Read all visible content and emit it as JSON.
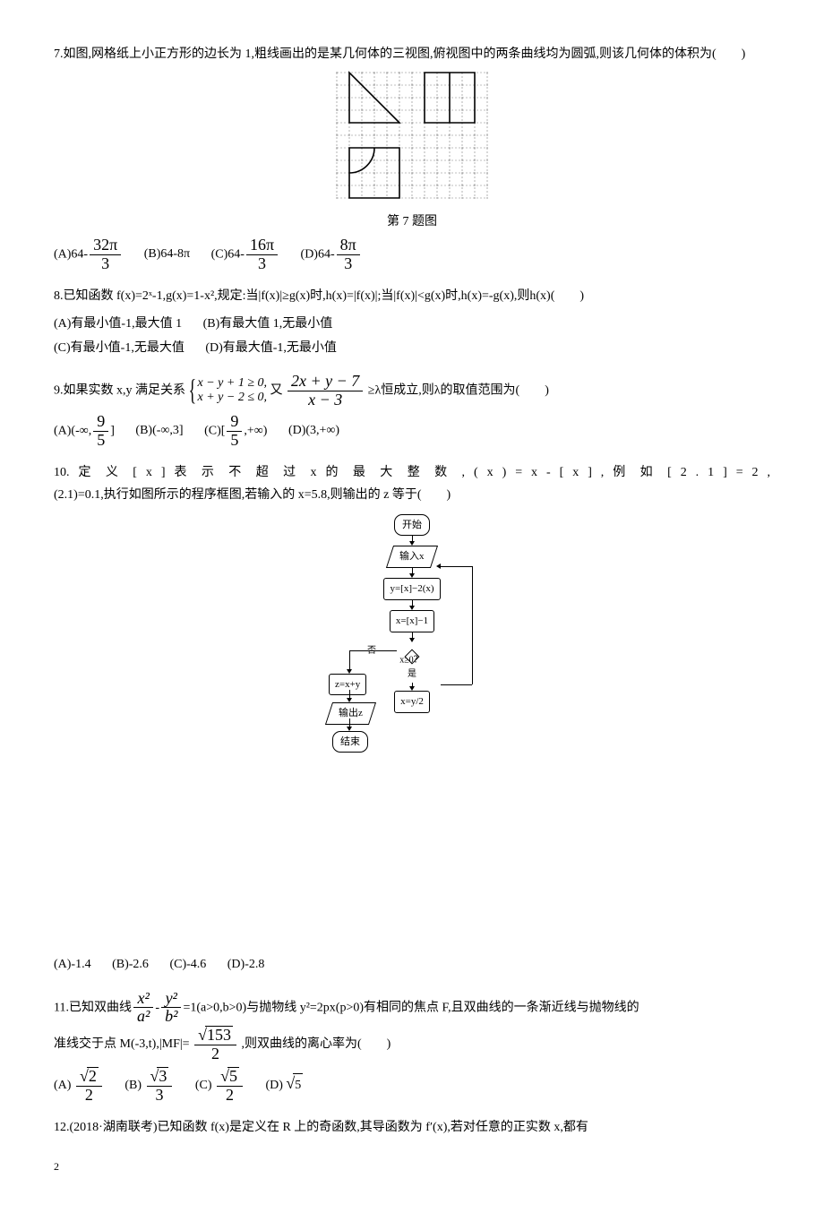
{
  "page": {
    "number": "2"
  },
  "q7": {
    "text": "7.如图,网格纸上小正方形的边长为 1,粗线画出的是某几何体的三视图,俯视图中的两条曲线均为圆弧,则该几何体的体积为(　　)",
    "fig_label": "第 7 题图",
    "grid": {
      "cols": 12,
      "rows": 10,
      "cell": 14,
      "color_dash": "#808080",
      "color_heavy": "#000000",
      "bg": "#ffffff"
    },
    "options": {
      "A_pre": "(A)64-",
      "A_num": "32π",
      "A_den": "3",
      "B": "(B)64-8π",
      "C_pre": "(C)64-",
      "C_num": "16π",
      "C_den": "3",
      "D_pre": "(D)64-",
      "D_num": "8π",
      "D_den": "3"
    }
  },
  "q8": {
    "text": "8.已知函数 f(x)=2ˣ-1,g(x)=1-x²,规定:当|f(x)|≥g(x)时,h(x)=|f(x)|;当|f(x)|<g(x)时,h(x)=-g(x),则h(x)(　　)",
    "opts": {
      "A": "(A)有最小值-1,最大值 1",
      "B": "(B)有最大值 1,无最小值",
      "C": "(C)有最小值-1,无最大值",
      "D": "(D)有最大值-1,无最小值"
    }
  },
  "q9": {
    "pre": "9.如果实数 x,y 满足关系",
    "line1": "x − y + 1 ≥ 0,",
    "line2": "x + y − 2 ≤ 0,",
    "mid": "又",
    "frac_num": "2x + y − 7",
    "frac_den": "x − 3",
    "post": "≥λ恒成立,则λ的取值范围为(　　)",
    "opts": {
      "A_pre": "(A)(-∞,",
      "A_num": "9",
      "A_den": "5",
      "A_post": "]",
      "B": "(B)(-∞,3]",
      "C_pre": "(C)[",
      "C_num": "9",
      "C_den": "5",
      "C_post": ",+∞)",
      "D": "(D)(3,+∞)"
    }
  },
  "q10": {
    "text1": "10. 定 义 [ x ] 表 示 不 超 过 x 的 最 大 整 数 , ( x ) = x - [ x ] , 例 如 [ 2 . 1 ] = 2 ,",
    "text2": "(2.1)=0.1,执行如图所示的程序框图,若输入的 x=5.8,则输出的 z 等于(　　)",
    "flow": {
      "start": "开始",
      "input": "输入x",
      "assign1": "y=[x]−2(x)",
      "assign2": "x=[x]−1",
      "cond": "x≥0？",
      "yes": "是",
      "no": "否",
      "right": "x=y/2",
      "left": "z=x+y",
      "output": "输出z",
      "end": "结束",
      "line_color": "#000000"
    },
    "opts": {
      "A": "(A)-1.4",
      "B": "(B)-2.6",
      "C": "(C)-4.6",
      "D": "(D)-2.8"
    }
  },
  "q11": {
    "pre": "11.已知双曲线",
    "t1_num": "x²",
    "t1_den": "a²",
    "minus": "-",
    "t2_num": "y²",
    "t2_den": "b²",
    "mid1": "=1(a>0,b>0)与抛物线 y²=2px(p>0)有相同的焦点 F,且双曲线的一条渐近线与抛物线的",
    "line2a": "准线交于点 M(-3,t),|MF|=",
    "mf_num_inner": "153",
    "mf_den": "2",
    "line2b": ",则双曲线的离心率为(　　)",
    "opts": {
      "A_pre": "(A)",
      "A_num_inner": "2",
      "A_den": "2",
      "B_pre": "(B)",
      "B_num_inner": "3",
      "B_den": "3",
      "C_pre": "(C)",
      "C_num_inner": "5",
      "C_den": "2",
      "D_pre": "(D)",
      "D_inner": "5"
    }
  },
  "q12": {
    "text": "12.(2018·湖南联考)已知函数 f(x)是定义在 R 上的奇函数,其导函数为 f′(x),若对任意的正实数 x,都有"
  }
}
